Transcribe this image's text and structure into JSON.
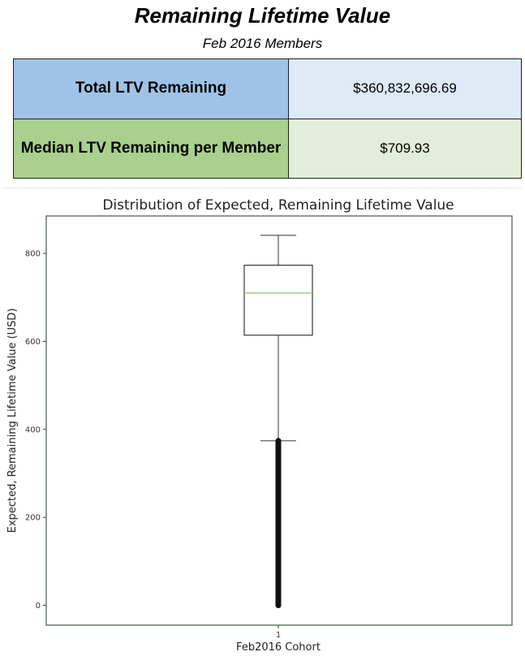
{
  "header": {
    "title": "Remaining Lifetime Value",
    "subtitle": "Feb 2016 Members"
  },
  "kpis": [
    {
      "label": "Total LTV Remaining",
      "value": "$360,832,696.69"
    },
    {
      "label": "Median LTV Remaining per Member",
      "value": "$709.93"
    }
  ],
  "colors": {
    "total_label_bg": "#9fc3e6",
    "total_value_bg": "#deeaf6",
    "median_label_bg": "#a9d08e",
    "median_value_bg": "#e2eed9",
    "median_line": "#a9d08e"
  },
  "chart_data": {
    "type": "box",
    "title": "Distribution of Expected, Remaining Lifetime Value",
    "xlabel": "Feb2016 Cohort",
    "ylabel": "Expected, Remaining Lifetime Value (USD)",
    "categories": [
      "1"
    ],
    "ylim": [
      -45,
      885
    ],
    "yticks": [
      0,
      200,
      400,
      600,
      800
    ],
    "box": {
      "whisker_low": 374,
      "q1": 614,
      "median": 710,
      "q3": 773,
      "whisker_high": 841,
      "outliers_range": [
        0,
        374
      ]
    },
    "grid": false
  }
}
